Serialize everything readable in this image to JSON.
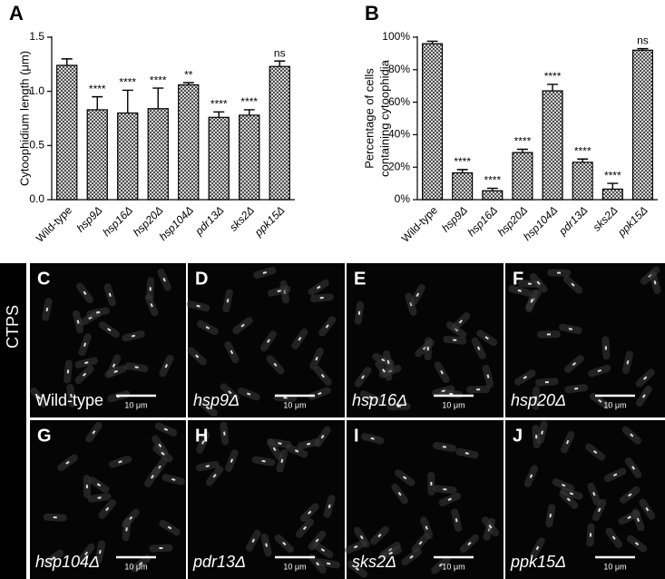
{
  "chart_data": [
    {
      "type": "bar",
      "panel_label": "A",
      "ylabel": "Cytoophidium length (μm)",
      "categories": [
        "Wild-type",
        "hsp9Δ",
        "hsp16Δ",
        "hsp20Δ",
        "hsp104Δ",
        "pdr13Δ",
        "sks2Δ",
        "ppk15Δ"
      ],
      "values": [
        1.24,
        0.83,
        0.8,
        0.84,
        1.06,
        0.76,
        0.78,
        1.23
      ],
      "errors": [
        0.06,
        0.12,
        0.21,
        0.19,
        0.02,
        0.05,
        0.05,
        0.05
      ],
      "significance": [
        null,
        "****",
        "****",
        "****",
        "**",
        "****",
        "****",
        "ns"
      ],
      "ylim": [
        0,
        1.5
      ],
      "yticks": [
        {
          "value": 0,
          "label": "0.0"
        },
        0.5,
        {
          "value": 1,
          "label": "1.0"
        },
        1.5
      ],
      "grid": false
    },
    {
      "type": "bar",
      "panel_label": "B",
      "ylabel": [
        "Percentage of cells",
        "containing cytoophidia"
      ],
      "categories": [
        "Wild-type",
        "hsp9Δ",
        "hsp16Δ",
        "hsp20Δ",
        "hsp104Δ",
        "pdr13Δ",
        "sks2Δ",
        "ppk15Δ"
      ],
      "values": [
        96,
        16.5,
        5.5,
        29,
        67,
        23,
        6.5,
        92
      ],
      "errors": [
        1.5,
        2,
        1.5,
        2,
        4,
        2,
        3.5,
        1
      ],
      "significance": [
        null,
        "****",
        "****",
        "****",
        "****",
        "****",
        "****",
        "ns"
      ],
      "ylim": [
        0,
        100
      ],
      "yticks": [
        {
          "value": 0,
          "label": "0%"
        },
        {
          "value": 20,
          "label": "20%"
        },
        {
          "value": 40,
          "label": "40%"
        },
        {
          "value": 60,
          "label": "60%"
        },
        {
          "value": 80,
          "label": "80%"
        },
        {
          "value": 100,
          "label": "100%"
        }
      ],
      "grid": false
    }
  ],
  "panels": {
    "stain": "CTPS",
    "items": [
      {
        "letter": "C",
        "label": "Wild-type",
        "scale_bar": "10 μm"
      },
      {
        "letter": "D",
        "label": "hsp9Δ",
        "scale_bar": "10 μm"
      },
      {
        "letter": "E",
        "label": "hsp16Δ",
        "scale_bar": "10 μm"
      },
      {
        "letter": "F",
        "label": "hsp20Δ",
        "scale_bar": "10 μm"
      },
      {
        "letter": "G",
        "label": "hsp104Δ",
        "scale_bar": "10 μm"
      },
      {
        "letter": "H",
        "label": "pdr13Δ",
        "scale_bar": "10 μm"
      },
      {
        "letter": "I",
        "label": "sks2Δ",
        "scale_bar": "10 μm"
      },
      {
        "letter": "J",
        "label": "ppk15Δ",
        "scale_bar": "10 μm"
      }
    ]
  }
}
